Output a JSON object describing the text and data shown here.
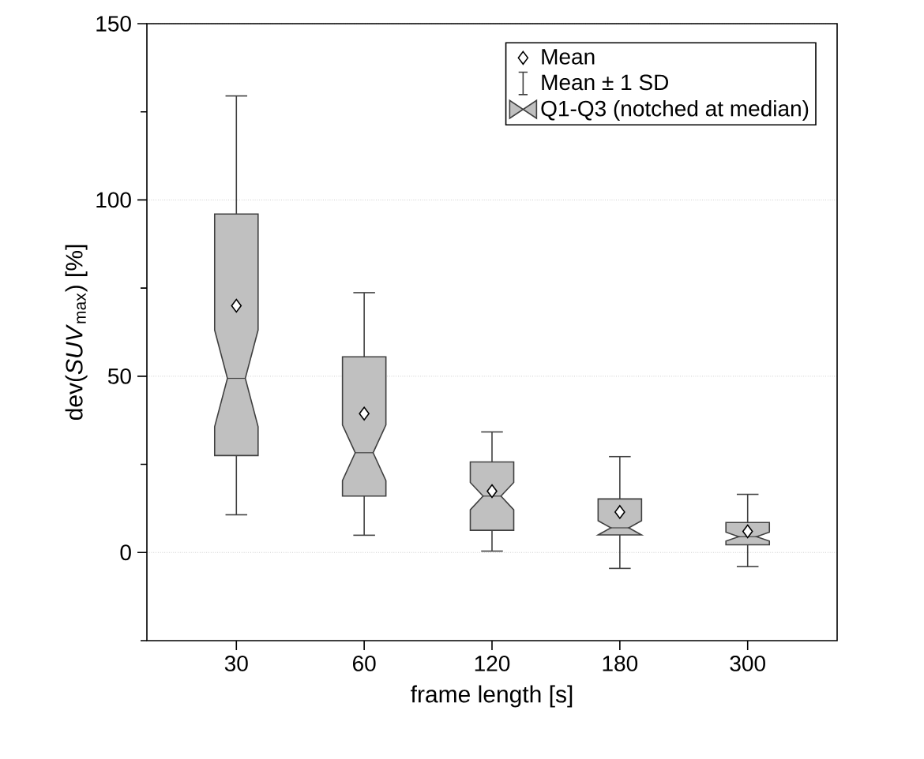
{
  "chart_data": {
    "type": "box",
    "xlabel": "frame length [s]",
    "ylabel": "dev(*SUV*$_{max}$) [%]",
    "categories": [
      "30",
      "60",
      "120",
      "180",
      "300"
    ],
    "ylim": [
      -25,
      150
    ],
    "yticks": [
      {
        "value": -25,
        "label": null
      },
      0,
      {
        "value": 25,
        "label": null
      },
      50,
      {
        "value": 75,
        "label": null
      },
      100,
      {
        "value": 125,
        "label": null
      },
      150
    ],
    "grid": "y",
    "legend": "top right",
    "annotations": [
      "Mean ± 1 SD"
    ],
    "series": [
      {
        "type": "scatter",
        "name": "Mean",
        "color": "#ffffff",
        "marker": "diamond",
        "values": [
          70,
          39.4,
          17.4,
          11.5,
          6
        ]
      },
      {
        "type": "box",
        "name": "Q1-Q3 (notched at median)",
        "color": "#c0c0c0",
        "boxes": [
          {
            "low": 10.7,
            "q1": 27.5,
            "median": 49.4,
            "q3": 96,
            "high": 129.5
          },
          {
            "low": 4.9,
            "q1": 16,
            "median": 28.3,
            "q3": 55.5,
            "high": 73.7
          },
          {
            "low": 0.4,
            "q1": 6.3,
            "median": 16,
            "q3": 25.7,
            "high": 34.2
          },
          {
            "low": -4.5,
            "q1": 5,
            "median": 7,
            "q3": 15.2,
            "high": 27.2
          },
          {
            "low": -4,
            "q1": 2.2,
            "median": 4.5,
            "q3": 8.5,
            "high": 16.5
          }
        ]
      }
    ]
  }
}
